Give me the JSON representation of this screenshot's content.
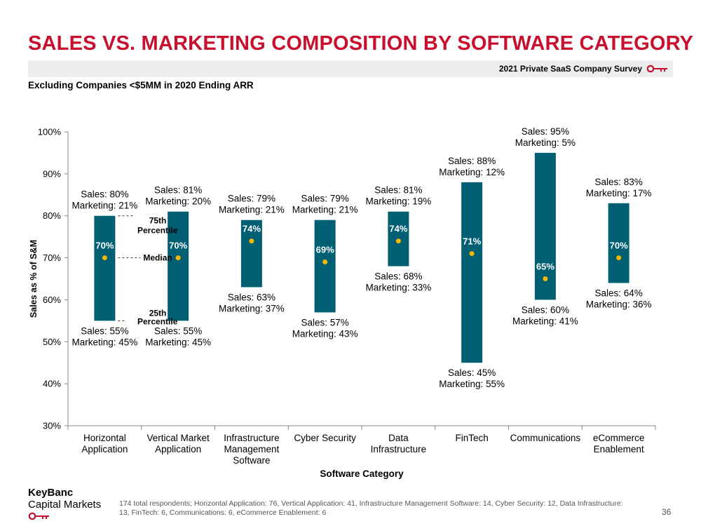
{
  "header": {
    "title": "SALES VS. MARKETING COMPOSITION BY SOFTWARE CATEGORY",
    "survey": "2021 Private SaaS Company Survey",
    "subtitle": "Excluding Companies <$5MM in 2020 Ending ARR",
    "key_icon": "key-icon"
  },
  "chart_data": {
    "type": "bar",
    "subtype": "floating-range-with-median",
    "xlabel": "Software Category",
    "ylabel": "Sales as % of S&M",
    "ylim": [
      30,
      100
    ],
    "yticks": [
      "30%",
      "40%",
      "50%",
      "60%",
      "70%",
      "80%",
      "90%",
      "100%"
    ],
    "bar_color": "#005f73",
    "median_color": "#f5b800",
    "categories": [
      {
        "label": [
          "Horizontal",
          "Application"
        ],
        "p25": 55,
        "p75": 80,
        "median": 70,
        "top": [
          "Sales: 80%",
          "Marketing: 21%"
        ],
        "bottom": [
          "Sales: 55%",
          "Marketing: 45%"
        ]
      },
      {
        "label": [
          "Vertical Market",
          "Application"
        ],
        "p25": 55,
        "p75": 81,
        "median": 70,
        "top": [
          "Sales: 81%",
          "Marketing: 20%"
        ],
        "bottom": [
          "Sales: 55%",
          "Marketing: 45%"
        ]
      },
      {
        "label": [
          "Infrastructure",
          "Management",
          "Software"
        ],
        "p25": 63,
        "p75": 79,
        "median": 74,
        "top": [
          "Sales: 79%",
          "Marketing: 21%"
        ],
        "bottom": [
          "Sales: 63%",
          "Marketing: 37%"
        ]
      },
      {
        "label": [
          "Cyber Security"
        ],
        "p25": 57,
        "p75": 79,
        "median": 69,
        "top": [
          "Sales: 79%",
          "Marketing: 21%"
        ],
        "bottom": [
          "Sales: 57%",
          "Marketing: 43%"
        ]
      },
      {
        "label": [
          "Data",
          "Infrastructure"
        ],
        "p25": 68,
        "p75": 81,
        "median": 74,
        "top": [
          "Sales: 81%",
          "Marketing: 19%"
        ],
        "bottom": [
          "Sales: 68%",
          "Marketing: 33%"
        ]
      },
      {
        "label": [
          "FinTech"
        ],
        "p25": 45,
        "p75": 88,
        "median": 71,
        "top": [
          "Sales: 88%",
          "Marketing: 12%"
        ],
        "bottom": [
          "Sales: 45%",
          "Marketing: 55%"
        ]
      },
      {
        "label": [
          "Communications"
        ],
        "p25": 60,
        "p75": 95,
        "median": 65,
        "top": [
          "Sales: 95%",
          "Marketing: 5%"
        ],
        "bottom": [
          "Sales: 60%",
          "Marketing: 41%"
        ]
      },
      {
        "label": [
          "eCommerce",
          "Enablement"
        ],
        "p25": 64,
        "p75": 83,
        "median": 70,
        "top": [
          "Sales: 83%",
          "Marketing: 17%"
        ],
        "bottom": [
          "Sales: 64%",
          "Marketing: 36%"
        ]
      }
    ],
    "legend_annotations": {
      "p75": [
        "75th",
        "Percentile"
      ],
      "median": "Median",
      "p25": [
        "25th",
        "Percentile"
      ]
    }
  },
  "footer": {
    "brand_line1": "KeyBanc",
    "brand_line2": "Capital Markets",
    "footnote": "174 total respondents; Horizontal Application: 76, Vertical Application: 41, Infrastructure Management Software: 14, Cyber Security: 12, Data Infrastructure: 13, FinTech: 6, Communications: 6, eCommerce Enablement: 6",
    "page_number": "36"
  }
}
